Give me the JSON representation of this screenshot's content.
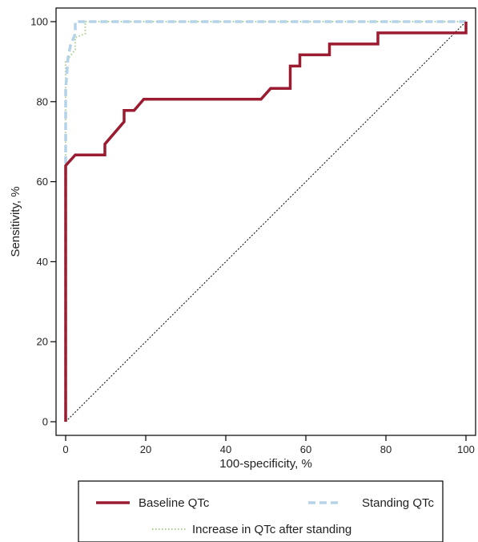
{
  "chart_data": {
    "type": "line",
    "xlabel": "100-specificity, %",
    "ylabel": "Sensitivity, %",
    "xlim": [
      0,
      100
    ],
    "ylim": [
      0,
      100
    ],
    "xticks": [
      0,
      20,
      40,
      60,
      80,
      100
    ],
    "yticks": [
      0,
      20,
      40,
      60,
      80,
      100
    ],
    "grid": false,
    "legend_position": "bottom",
    "reference_line": {
      "from": [
        0,
        0
      ],
      "to": [
        100,
        100
      ],
      "style": "dotted",
      "color": "#000000"
    },
    "series": [
      {
        "name": "Baseline QTc",
        "color": "#9b1b30",
        "style": "solid",
        "points": [
          [
            0,
            0
          ],
          [
            0,
            64
          ],
          [
            2.4,
            66.7
          ],
          [
            9.8,
            66.7
          ],
          [
            9.8,
            69.4
          ],
          [
            14.6,
            75
          ],
          [
            14.6,
            77.8
          ],
          [
            17.1,
            77.8
          ],
          [
            19.5,
            80.6
          ],
          [
            48.8,
            80.6
          ],
          [
            51.2,
            83.3
          ],
          [
            56.1,
            83.3
          ],
          [
            56.1,
            88.9
          ],
          [
            58.5,
            88.9
          ],
          [
            58.5,
            91.7
          ],
          [
            65.9,
            91.7
          ],
          [
            65.9,
            94.4
          ],
          [
            78,
            94.4
          ],
          [
            78,
            97.2
          ],
          [
            100,
            97.2
          ],
          [
            100,
            100
          ]
        ]
      },
      {
        "name": "Standing QTc",
        "color": "#b5d3e8",
        "style": "dashed",
        "points": [
          [
            0,
            0
          ],
          [
            0,
            83
          ],
          [
            0.6,
            91
          ],
          [
            1.2,
            94
          ],
          [
            2.4,
            97
          ],
          [
            2.4,
            100
          ],
          [
            100,
            100
          ]
        ]
      },
      {
        "name": "Increase in QTc after standing",
        "color": "#a9d18e",
        "style": "dotted",
        "points": [
          [
            0,
            0
          ],
          [
            0,
            90
          ],
          [
            2.4,
            93
          ],
          [
            2.4,
            96
          ],
          [
            4.9,
            97
          ],
          [
            4.9,
            100
          ],
          [
            100,
            100
          ]
        ]
      }
    ]
  }
}
